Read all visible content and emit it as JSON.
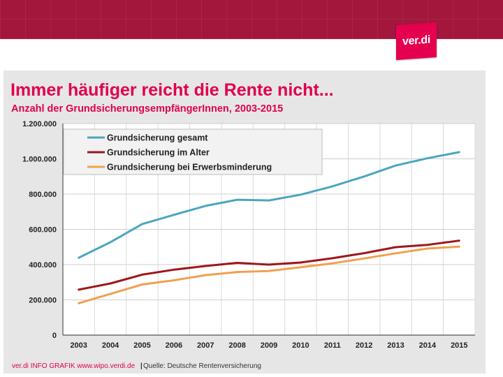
{
  "brand": {
    "logo_text": "ver.di",
    "banner_color": "#a3173c",
    "logo_color": "#e5004f"
  },
  "footer": {
    "credit": "ver.di INFO GRAFIK www.wipo.verdi.de",
    "separator": "|",
    "source": "Quelle: Deutsche Rentenversicherung"
  },
  "chart_data": {
    "type": "line",
    "title": "Immer häufiger reicht die Rente nicht...",
    "subtitle": "Anzahl der GrundsicherungsempfängerInnen, 2003-2015",
    "xlabel": "",
    "ylabel": "",
    "categories": [
      "2003",
      "2004",
      "2005",
      "2006",
      "2007",
      "2008",
      "2009",
      "2010",
      "2011",
      "2012",
      "2013",
      "2014",
      "2015"
    ],
    "ylim": [
      0,
      1200000
    ],
    "yticks": [
      0,
      200000,
      400000,
      600000,
      800000,
      1000000,
      1200000
    ],
    "ytick_labels": [
      "0",
      "200.000",
      "400.000",
      "600.000",
      "800.000",
      "1.000.000",
      "1.200.000"
    ],
    "grid": true,
    "legend_position": "top-left",
    "series": [
      {
        "name": "Grundsicherung gesamt",
        "color": "#4ba6be",
        "values": [
          439000,
          527000,
          630000,
          682000,
          733000,
          768000,
          764000,
          797000,
          844000,
          900000,
          962000,
          1003000,
          1038000
        ]
      },
      {
        "name": "Grundsicherung im Alter",
        "color": "#a0151c",
        "values": [
          258000,
          293000,
          343000,
          371000,
          392000,
          410000,
          400000,
          412000,
          436000,
          465000,
          499000,
          512000,
          536000
        ]
      },
      {
        "name": "Grundsicherung bei Erwerbsminderung",
        "color": "#f0a050",
        "values": [
          181000,
          234000,
          287000,
          311000,
          340000,
          358000,
          364000,
          385000,
          407000,
          435000,
          464000,
          491000,
          502000
        ]
      }
    ]
  }
}
